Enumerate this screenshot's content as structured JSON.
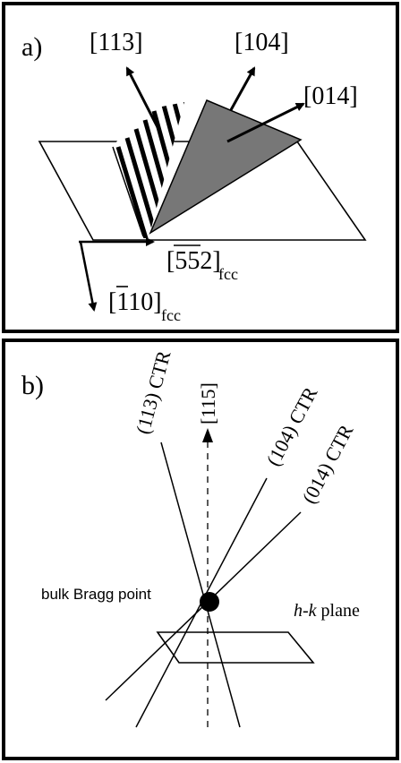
{
  "panel_a": {
    "label": "a)",
    "directions": {
      "d113": "[113]",
      "d104": "[104]",
      "d014": "[014]"
    },
    "axis_552": {
      "main": "[552]",
      "overlined_digits": "55",
      "last_digit": "2",
      "subscript": "fcc"
    },
    "axis_110": {
      "main": "[110]",
      "overlined_digit": "1",
      "rest": "10",
      "subscript": "fcc"
    },
    "colors": {
      "facet_fill": "#777777",
      "lines": "#000000"
    }
  },
  "panel_b": {
    "label": "b)",
    "ctr_113": "(113) CTR",
    "axis_115": "[115]",
    "ctr_104": "(104) CTR",
    "ctr_014": "(014) CTR",
    "bragg_point": "bulk Bragg point",
    "hk_plane": {
      "italic_part": "h-k",
      "rest": " plane"
    }
  }
}
